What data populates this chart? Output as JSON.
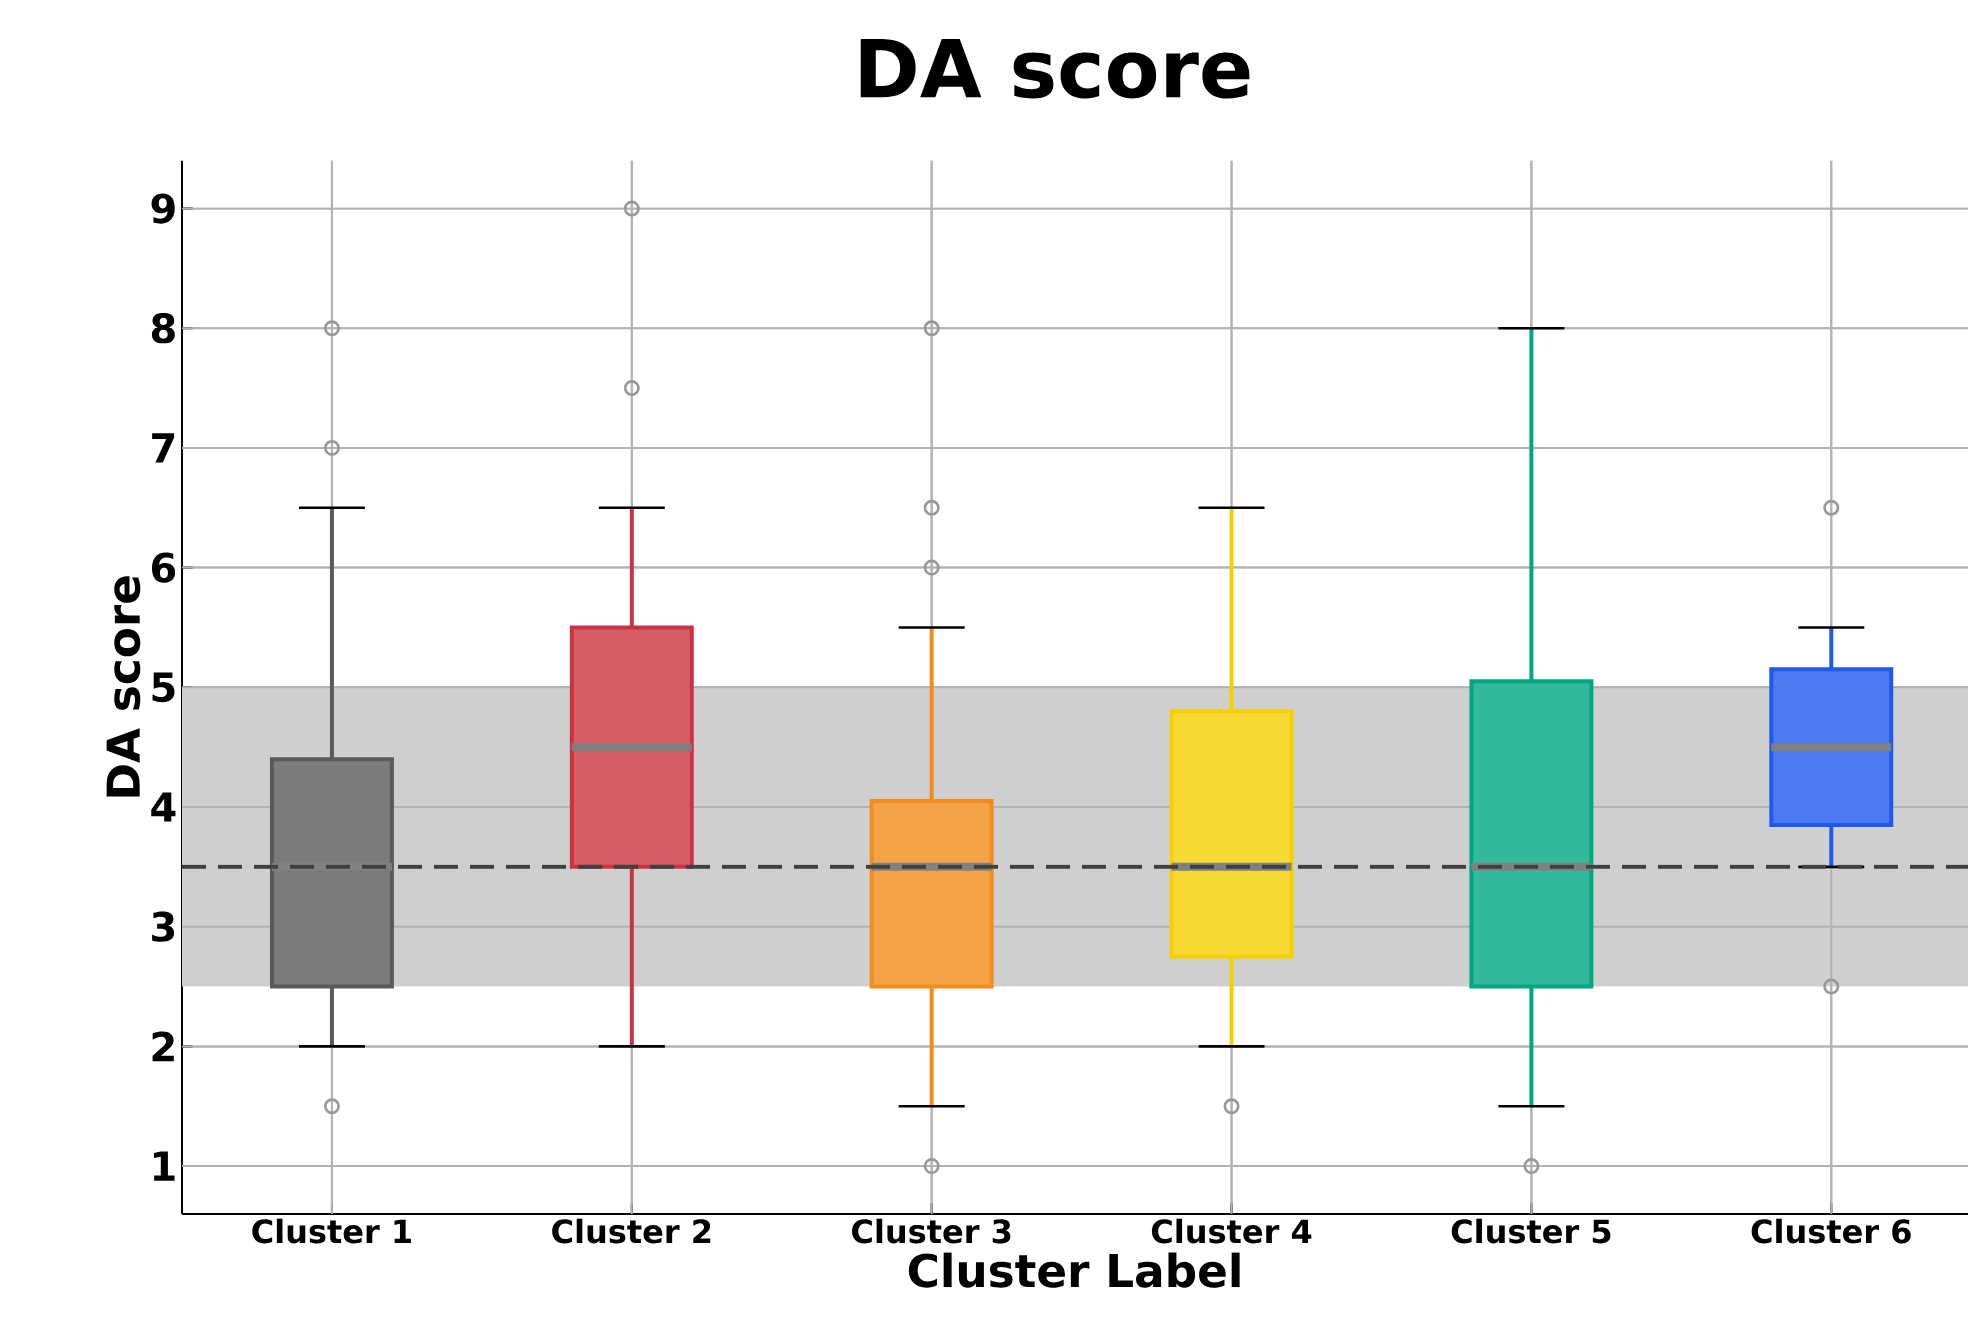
{
  "chart_data": {
    "type": "box",
    "title": "DA score",
    "xlabel": "Cluster Label",
    "ylabel": "DA score",
    "categories": [
      "Cluster 1",
      "Cluster 2",
      "Cluster 3",
      "Cluster 4",
      "Cluster 5",
      "Cluster 6"
    ],
    "colors": [
      "#5a5a5a",
      "#cc3340",
      "#f28c1a",
      "#f5d000",
      "#00a882",
      "#2058f0"
    ],
    "boxes": [
      {
        "low": 2,
        "q1": 2.5,
        "median": 3.5,
        "q3": 4.4,
        "high": 6.5,
        "outliers": [
          8,
          7,
          1.5
        ]
      },
      {
        "low": 2,
        "q1": 3.5,
        "median": 4.5,
        "q3": 5.5,
        "high": 6.5,
        "outliers": [
          9,
          7.5
        ]
      },
      {
        "low": 1.5,
        "q1": 2.5,
        "median": 3.5,
        "q3": 4.05,
        "high": 5.5,
        "outliers": [
          8,
          6.5,
          6,
          1
        ]
      },
      {
        "low": 2,
        "q1": 2.75,
        "median": 3.5,
        "q3": 4.8,
        "high": 6.5,
        "outliers": [
          1.5
        ]
      },
      {
        "low": 1.5,
        "q1": 2.5,
        "median": 3.5,
        "q3": 5.05,
        "high": 8,
        "outliers": [
          1
        ]
      },
      {
        "low": 3.5,
        "q1": 3.85,
        "median": 4.5,
        "q3": 5.15,
        "high": 5.5,
        "outliers": [
          6.5,
          2.5
        ]
      }
    ],
    "ylim": [
      0.6,
      9.4
    ],
    "yticks": [
      1,
      2,
      3,
      4,
      5,
      6,
      7,
      8,
      9
    ],
    "grid": true,
    "bands": [
      {
        "axis": "y",
        "from": 2.5,
        "to": 5,
        "color": "#cfcfcf"
      }
    ],
    "ref_lines": [
      {
        "axis": "y",
        "value": 3.5,
        "color": "#404040",
        "line_style": "dashed"
      }
    ]
  }
}
